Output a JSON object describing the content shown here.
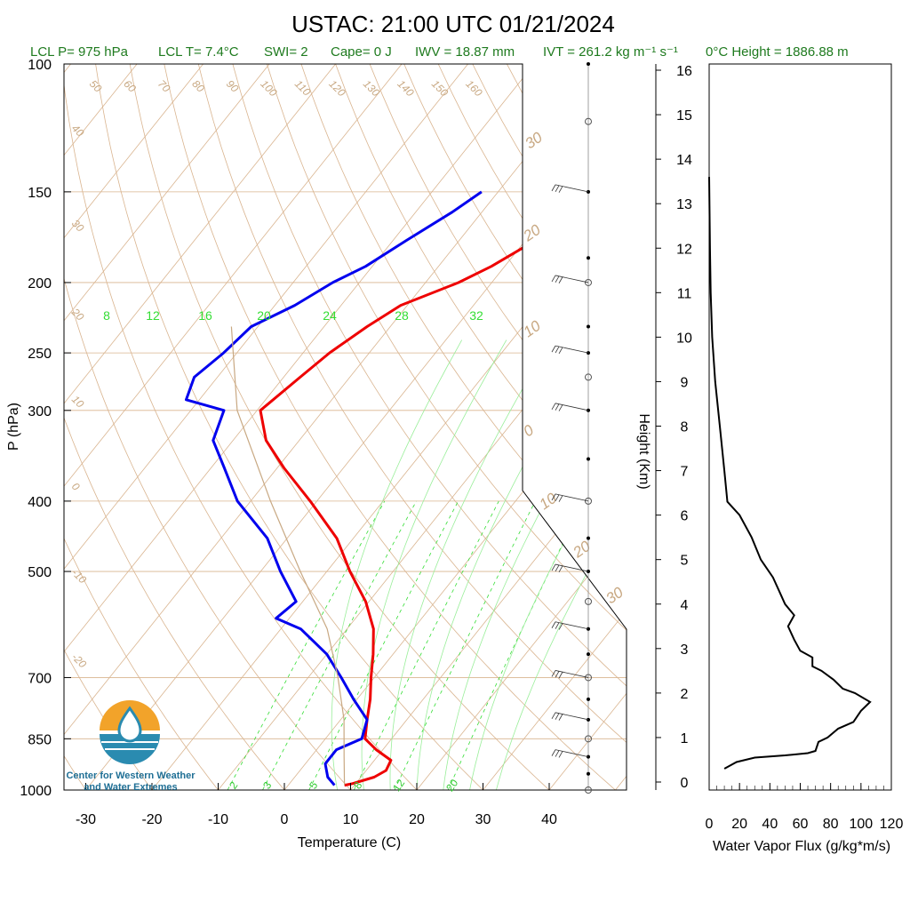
{
  "title": "USTAC: 21:00 UTC 01/21/2024",
  "subtitle": {
    "lcl_p": "LCL P= 975 hPa",
    "lcl_t": "LCL T= 7.4°C",
    "swi": "SWI= 2",
    "cape": "Cape= 0 J",
    "iwv": "IWV = 18.87 mm",
    "ivt": "IVT = 261.2 kg m⁻¹ s⁻¹",
    "freezing_height": "0°C Height = 1886.88 m"
  },
  "logo": {
    "line1": "Center for Western Weather",
    "line2": "and Water Extremes"
  },
  "colors": {
    "temperature": "#ee0000",
    "dewpoint": "#0000ee",
    "isotherm": "#d9b48f",
    "dry_adiabat": "#d9b48f",
    "mixing_ratio": "#33dd33",
    "parcel": "#c8a882",
    "flux": "#000000"
  },
  "chart_data": [
    {
      "type": "line",
      "name": "skew-t",
      "xlabel": "Temperature (C)",
      "ylabel": "P (hPa)",
      "x_ticks": [
        -30,
        -20,
        -10,
        0,
        10,
        20,
        30,
        40
      ],
      "y_ticks": [
        100,
        150,
        200,
        250,
        300,
        400,
        500,
        700,
        850,
        1000
      ],
      "skewed_temperature_labels": [
        50,
        60,
        70,
        80,
        90,
        100,
        110,
        120,
        130,
        140,
        150,
        160,
        40,
        30,
        20,
        10,
        0,
        -10,
        -20,
        30,
        20,
        10,
        0,
        10,
        20,
        30
      ],
      "mixing_ratio_labels_top": [
        8,
        12,
        16,
        20,
        24,
        28,
        32
      ],
      "mixing_ratio_labels_bottom": [
        2,
        3,
        5,
        8,
        12,
        20
      ],
      "series": [
        {
          "name": "Temperature",
          "points": [
            [
              150,
              -22.2
            ],
            [
              160,
              -24.5
            ],
            [
              175,
              -28.5
            ],
            [
              190,
              -32
            ],
            [
              200,
              -35
            ],
            [
              215,
              -41
            ],
            [
              230,
              -43.5
            ],
            [
              250,
              -46
            ],
            [
              270,
              -47.5
            ],
            [
              300,
              -49.5
            ],
            [
              330,
              -45
            ],
            [
              360,
              -39
            ],
            [
              400,
              -31
            ],
            [
              450,
              -22.5
            ],
            [
              500,
              -16.5
            ],
            [
              550,
              -10.5
            ],
            [
              600,
              -6
            ],
            [
              650,
              -3
            ],
            [
              700,
              -0.5
            ],
            [
              750,
              2
            ],
            [
              800,
              4
            ],
            [
              850,
              6
            ],
            [
              880,
              9
            ],
            [
              910,
              12.5
            ],
            [
              940,
              13
            ],
            [
              960,
              12
            ],
            [
              980,
              9.5
            ],
            [
              985,
              8.5
            ]
          ]
        },
        {
          "name": "Dewpoint",
          "points": [
            [
              150,
              -42.5
            ],
            [
              160,
              -44.5
            ],
            [
              175,
              -48
            ],
            [
              190,
              -51
            ],
            [
              200,
              -54
            ],
            [
              215,
              -57
            ],
            [
              230,
              -61
            ],
            [
              250,
              -62
            ],
            [
              270,
              -63.5
            ],
            [
              290,
              -62
            ],
            [
              300,
              -55
            ],
            [
              330,
              -53
            ],
            [
              360,
              -48
            ],
            [
              400,
              -42
            ],
            [
              450,
              -33
            ],
            [
              500,
              -27
            ],
            [
              550,
              -21
            ],
            [
              580,
              -22
            ],
            [
              600,
              -17
            ],
            [
              650,
              -10
            ],
            [
              700,
              -5
            ],
            [
              750,
              -0.5
            ],
            [
              800,
              4
            ],
            [
              850,
              5.5
            ],
            [
              880,
              3
            ],
            [
              920,
              3
            ],
            [
              960,
              5
            ],
            [
              985,
              7
            ]
          ]
        },
        {
          "name": "Parcel",
          "points": [
            [
              985,
              8.5
            ],
            [
              900,
              5
            ],
            [
              800,
              0.5
            ],
            [
              700,
              -5.5
            ],
            [
              600,
              -13
            ],
            [
              500,
              -24
            ],
            [
              400,
              -37
            ],
            [
              300,
              -53
            ],
            [
              230,
              -64
            ]
          ]
        }
      ]
    },
    {
      "type": "line",
      "name": "water-vapor-flux",
      "xlabel": "Water Vapor Flux (g/kg*m/s)",
      "ylabel": "Height (Km)",
      "xlim": [
        0,
        120
      ],
      "ylim": [
        0,
        16
      ],
      "x_ticks": [
        0,
        20,
        40,
        60,
        80,
        100,
        120
      ],
      "y_ticks": [
        0,
        1,
        2,
        3,
        4,
        5,
        6,
        7,
        8,
        9,
        10,
        11,
        12,
        13,
        14,
        15,
        16
      ],
      "points": [
        [
          10,
          0.3
        ],
        [
          18,
          0.45
        ],
        [
          30,
          0.55
        ],
        [
          50,
          0.6
        ],
        [
          65,
          0.65
        ],
        [
          70,
          0.7
        ],
        [
          72,
          0.9
        ],
        [
          78,
          1.0
        ],
        [
          85,
          1.2
        ],
        [
          95,
          1.35
        ],
        [
          100,
          1.6
        ],
        [
          106,
          1.8
        ],
        [
          96,
          2.0
        ],
        [
          88,
          2.1
        ],
        [
          82,
          2.3
        ],
        [
          74,
          2.5
        ],
        [
          68,
          2.6
        ],
        [
          68,
          2.8
        ],
        [
          60,
          2.95
        ],
        [
          56,
          3.2
        ],
        [
          52,
          3.5
        ],
        [
          56,
          3.75
        ],
        [
          50,
          4.0
        ],
        [
          46,
          4.3
        ],
        [
          42,
          4.6
        ],
        [
          34,
          5.0
        ],
        [
          28,
          5.5
        ],
        [
          20,
          6.0
        ],
        [
          12,
          6.3
        ],
        [
          10,
          7.0
        ],
        [
          7,
          8.0
        ],
        [
          4,
          9.0
        ],
        [
          2,
          10.0
        ],
        [
          1,
          11.0
        ],
        [
          0.5,
          12.0
        ],
        [
          0,
          13.6
        ]
      ]
    },
    {
      "type": "scatter",
      "name": "wind-barbs",
      "levels": [
        100,
        120,
        150,
        185,
        200,
        230,
        250,
        270,
        300,
        350,
        400,
        450,
        500,
        550,
        600,
        650,
        700,
        750,
        800,
        850,
        900,
        950,
        1000
      ]
    }
  ]
}
